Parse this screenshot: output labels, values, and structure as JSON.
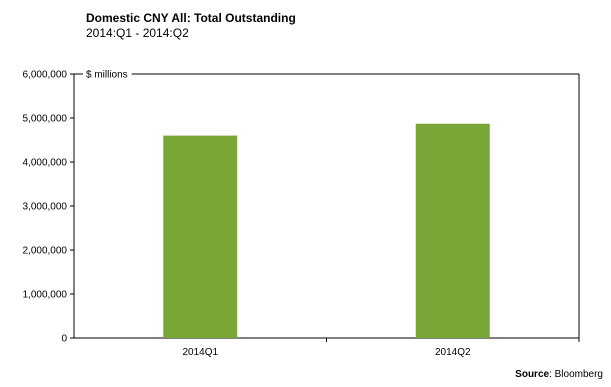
{
  "chart_data": {
    "type": "bar",
    "title": "Domestic CNY All:  Total Outstanding",
    "subtitle": "2014:Q1 - 2014:Q2",
    "ylabel": "$ millions",
    "xlabel": "",
    "categories": [
      "2014Q1",
      "2014Q2"
    ],
    "values": [
      4600000,
      4870000
    ],
    "ylim": [
      0,
      6000000
    ],
    "yticks": [
      0,
      1000000,
      2000000,
      3000000,
      4000000,
      5000000,
      6000000
    ],
    "ytick_labels": [
      "0",
      "1,000,000",
      "2,000,000",
      "3,000,000",
      "4,000,000",
      "5,000,000",
      "6,000,000"
    ],
    "bar_color": "#7aa637",
    "grid": false,
    "source_label": "Source",
    "source_text": ": Bloomberg"
  }
}
